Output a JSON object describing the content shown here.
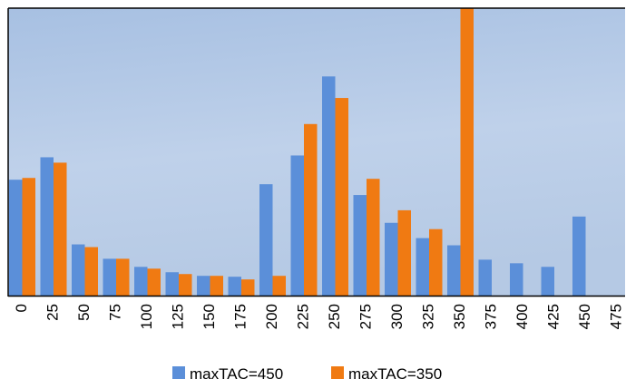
{
  "chart_data": {
    "type": "bar",
    "categories": [
      "0",
      "25",
      "50",
      "75",
      "100",
      "125",
      "150",
      "175",
      "200",
      "225",
      "250",
      "275",
      "300",
      "325",
      "350",
      "375",
      "400",
      "425",
      "450",
      "475"
    ],
    "series": [
      {
        "name": "maxTAC=450",
        "color": "#5B8FD9",
        "values": [
          129,
          154,
          57,
          41,
          32,
          26,
          22,
          21,
          124,
          156,
          244,
          112,
          81,
          64,
          56,
          40,
          36,
          32,
          88,
          0
        ]
      },
      {
        "name": "maxTAC=350",
        "color": "#F07A12",
        "values": [
          131,
          148,
          54,
          41,
          30,
          24,
          22,
          18,
          22,
          191,
          220,
          130,
          95,
          74,
          320,
          0,
          0,
          0,
          0,
          0
        ]
      }
    ],
    "ylim": [
      0,
      320
    ],
    "grid": false,
    "legend": "bottom-center",
    "colors": {
      "plot_gradient_top": "#A9C3E3",
      "plot_gradient_bottom": "#C3D3E8",
      "border": "#000000"
    }
  }
}
